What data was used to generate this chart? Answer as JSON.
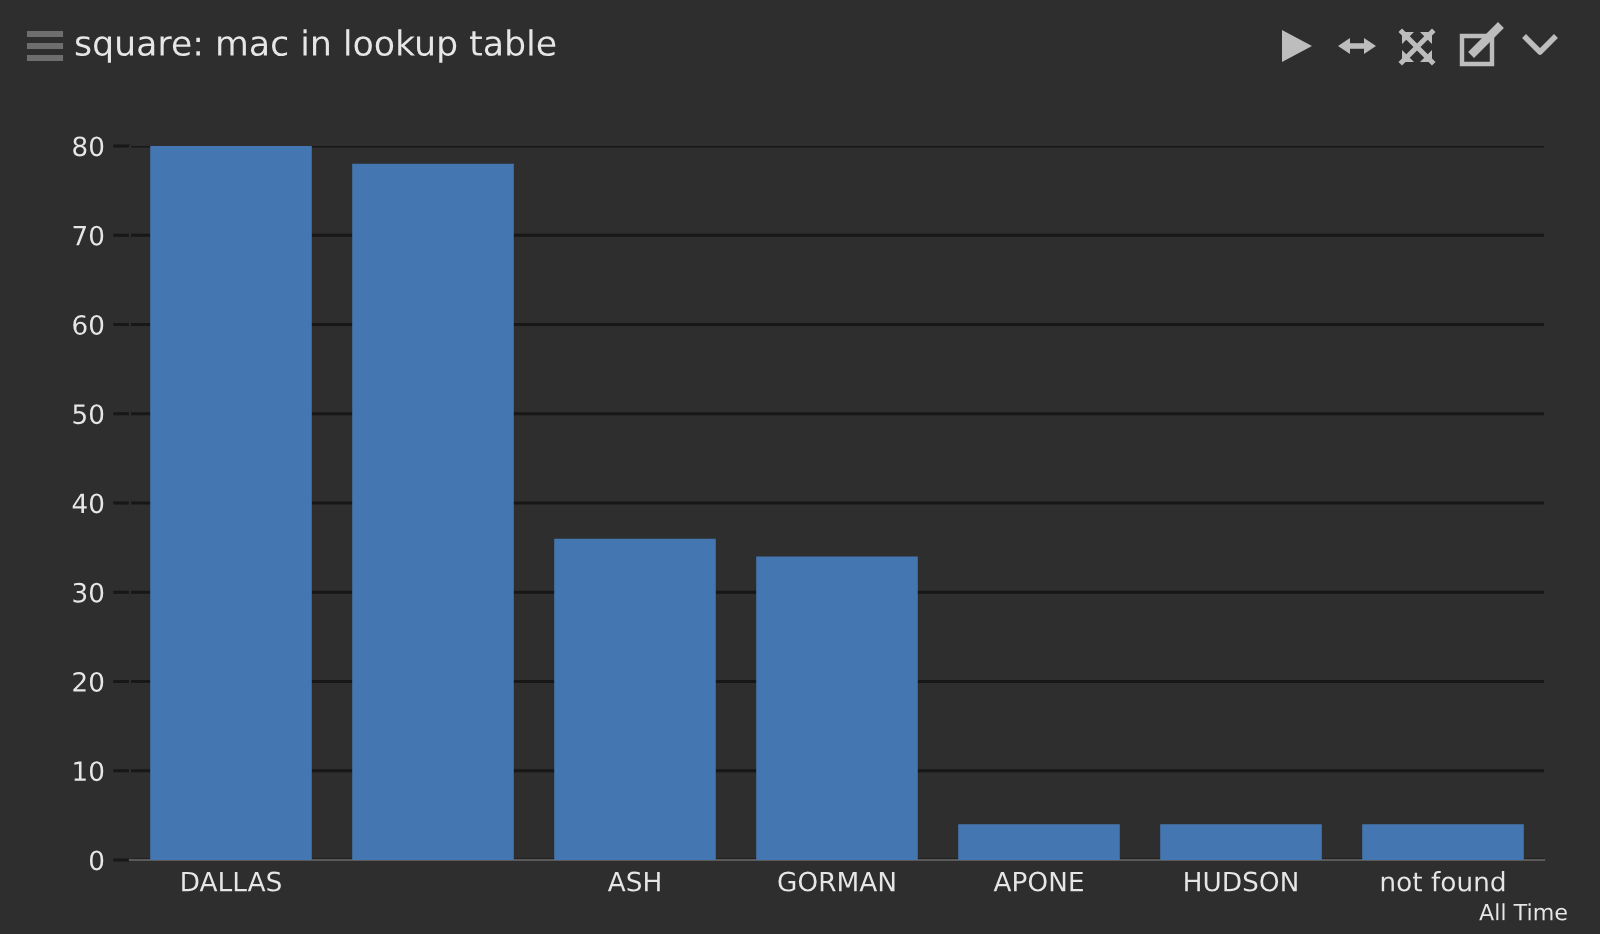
{
  "chart_data": {
    "type": "bar",
    "title": "square: mac in lookup table",
    "categories": [
      "DALLAS",
      null,
      "ASH",
      "GORMAN",
      "APONE",
      "HUDSON",
      "not found"
    ],
    "values": [
      80,
      78,
      36,
      34,
      4,
      4,
      4
    ],
    "color": "#4477b1",
    "ylim": [
      0,
      80
    ],
    "yticks": [
      0,
      10,
      20,
      30,
      40,
      50,
      60,
      70,
      80
    ],
    "grid": "y",
    "annotations": [
      "All Time"
    ]
  }
}
